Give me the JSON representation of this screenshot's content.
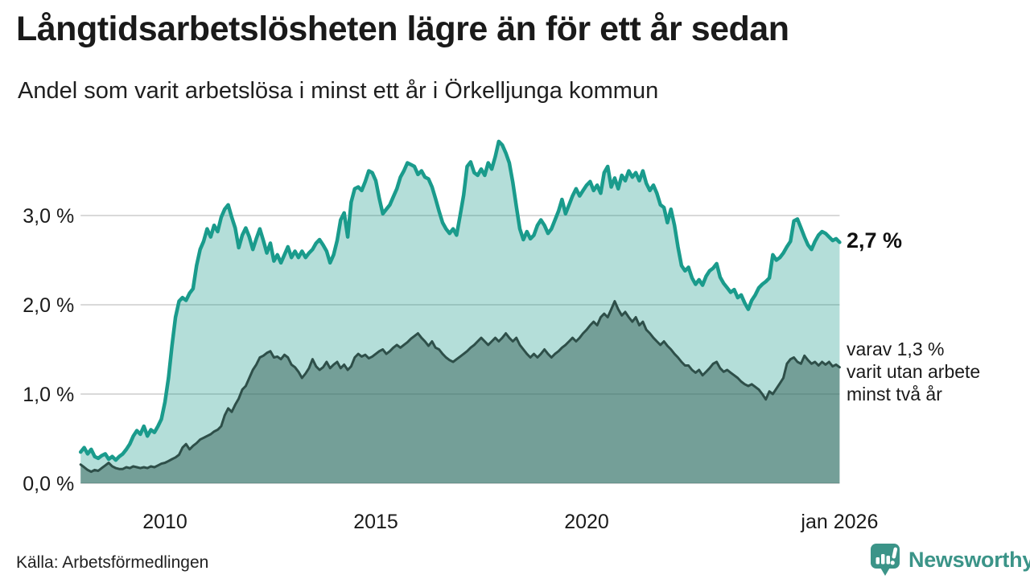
{
  "header": {
    "title": "Långtidsarbetslösheten lägre än för ett år sedan",
    "subtitle": "Andel som varit arbetslösa i minst ett år i Örkelljunga kommun"
  },
  "annotations": {
    "latest_total": "2,7 %",
    "latest_two_year": "varav 1,3 %\nvarit utan arbete\nminst två år"
  },
  "footer": {
    "source": "Källa: Arbetsförmedlingen",
    "logo_text": "Newsworthy",
    "logo_color": "#3b9488"
  },
  "chart_data": {
    "type": "area",
    "title": "Långtidsarbetslösheten lägre än för ett år sedan",
    "subtitle": "Andel som varit arbetslösa i minst ett år i Örkelljunga kommun",
    "unit": "%",
    "grid": true,
    "gridline_color": "#d9d9d9",
    "x_start_year": 2008.0,
    "x_end_year": 2026.0,
    "points_per_year": 12,
    "x_tick_years": [
      2010,
      2015,
      2020,
      2026
    ],
    "x_tick_labels": [
      "2010",
      "2015",
      "2020",
      "jan 2026"
    ],
    "y_tick_values": [
      0,
      1,
      2,
      3
    ],
    "y_tick_labels": [
      "0,0 %",
      "1,0 %",
      "2,0 %",
      "3,0 %"
    ],
    "ylim": [
      0,
      3.9
    ],
    "series": [
      {
        "name": "Andel som varit arbetslösa i minst ett år",
        "line_color": "#1a9b8c",
        "fill_color": "#1a9b8c",
        "fill_opacity": 0.33,
        "line_width": 4.5,
        "latest_value": 2.7,
        "values": [
          0.35,
          0.4,
          0.33,
          0.38,
          0.3,
          0.28,
          0.31,
          0.33,
          0.27,
          0.3,
          0.26,
          0.3,
          0.33,
          0.38,
          0.44,
          0.53,
          0.59,
          0.55,
          0.64,
          0.53,
          0.6,
          0.57,
          0.64,
          0.72,
          0.91,
          1.18,
          1.54,
          1.86,
          2.04,
          2.08,
          2.05,
          2.13,
          2.18,
          2.44,
          2.62,
          2.71,
          2.85,
          2.76,
          2.89,
          2.82,
          2.98,
          3.07,
          3.12,
          2.98,
          2.86,
          2.64,
          2.78,
          2.86,
          2.76,
          2.62,
          2.74,
          2.85,
          2.72,
          2.58,
          2.69,
          2.49,
          2.56,
          2.47,
          2.56,
          2.65,
          2.53,
          2.6,
          2.53,
          2.6,
          2.53,
          2.58,
          2.62,
          2.69,
          2.73,
          2.67,
          2.6,
          2.47,
          2.56,
          2.72,
          2.95,
          3.03,
          2.76,
          3.15,
          3.3,
          3.32,
          3.28,
          3.38,
          3.5,
          3.48,
          3.39,
          3.19,
          3.02,
          3.07,
          3.12,
          3.21,
          3.3,
          3.43,
          3.5,
          3.59,
          3.57,
          3.55,
          3.46,
          3.5,
          3.43,
          3.41,
          3.32,
          3.19,
          3.05,
          2.92,
          2.85,
          2.8,
          2.85,
          2.78,
          3.0,
          3.23,
          3.55,
          3.6,
          3.48,
          3.45,
          3.52,
          3.45,
          3.59,
          3.52,
          3.66,
          3.83,
          3.79,
          3.7,
          3.59,
          3.37,
          3.1,
          2.85,
          2.73,
          2.82,
          2.74,
          2.78,
          2.89,
          2.95,
          2.89,
          2.8,
          2.85,
          2.95,
          3.05,
          3.18,
          3.02,
          3.12,
          3.22,
          3.3,
          3.22,
          3.28,
          3.34,
          3.38,
          3.28,
          3.34,
          3.25,
          3.48,
          3.55,
          3.32,
          3.42,
          3.3,
          3.45,
          3.39,
          3.5,
          3.43,
          3.48,
          3.39,
          3.5,
          3.36,
          3.28,
          3.34,
          3.25,
          3.12,
          3.09,
          2.92,
          3.07,
          2.89,
          2.65,
          2.44,
          2.38,
          2.42,
          2.3,
          2.23,
          2.28,
          2.22,
          2.32,
          2.38,
          2.41,
          2.46,
          2.31,
          2.24,
          2.19,
          2.14,
          2.17,
          2.08,
          2.11,
          2.02,
          1.95,
          2.05,
          2.11,
          2.19,
          2.23,
          2.26,
          2.3,
          2.56,
          2.5,
          2.53,
          2.58,
          2.65,
          2.71,
          2.94,
          2.96,
          2.86,
          2.76,
          2.67,
          2.62,
          2.71,
          2.78,
          2.82,
          2.8,
          2.76,
          2.72,
          2.74,
          2.7
        ]
      },
      {
        "name": "varav utan arbete minst två år",
        "line_color": "#2e4f49",
        "fill_color": "#3f6b62",
        "fill_opacity": 0.55,
        "line_width": 3,
        "latest_value": 1.3,
        "values": [
          0.21,
          0.18,
          0.15,
          0.13,
          0.15,
          0.14,
          0.17,
          0.2,
          0.23,
          0.19,
          0.17,
          0.16,
          0.16,
          0.18,
          0.17,
          0.19,
          0.18,
          0.17,
          0.18,
          0.17,
          0.19,
          0.18,
          0.2,
          0.22,
          0.23,
          0.25,
          0.27,
          0.29,
          0.32,
          0.4,
          0.44,
          0.38,
          0.42,
          0.45,
          0.49,
          0.51,
          0.53,
          0.55,
          0.58,
          0.6,
          0.64,
          0.76,
          0.84,
          0.8,
          0.88,
          0.95,
          1.05,
          1.09,
          1.18,
          1.27,
          1.33,
          1.41,
          1.43,
          1.46,
          1.48,
          1.41,
          1.42,
          1.39,
          1.44,
          1.41,
          1.33,
          1.3,
          1.25,
          1.18,
          1.23,
          1.29,
          1.39,
          1.31,
          1.27,
          1.3,
          1.36,
          1.29,
          1.33,
          1.36,
          1.29,
          1.33,
          1.27,
          1.31,
          1.41,
          1.45,
          1.42,
          1.44,
          1.4,
          1.42,
          1.45,
          1.48,
          1.5,
          1.45,
          1.48,
          1.52,
          1.55,
          1.52,
          1.55,
          1.58,
          1.62,
          1.65,
          1.68,
          1.63,
          1.59,
          1.54,
          1.59,
          1.52,
          1.5,
          1.45,
          1.41,
          1.38,
          1.36,
          1.39,
          1.42,
          1.45,
          1.48,
          1.52,
          1.55,
          1.59,
          1.63,
          1.59,
          1.55,
          1.59,
          1.63,
          1.59,
          1.63,
          1.68,
          1.63,
          1.59,
          1.63,
          1.55,
          1.5,
          1.45,
          1.41,
          1.45,
          1.41,
          1.45,
          1.5,
          1.45,
          1.41,
          1.45,
          1.48,
          1.52,
          1.55,
          1.59,
          1.63,
          1.59,
          1.63,
          1.68,
          1.72,
          1.77,
          1.81,
          1.77,
          1.86,
          1.9,
          1.86,
          1.95,
          2.04,
          1.95,
          1.88,
          1.92,
          1.86,
          1.81,
          1.86,
          1.77,
          1.81,
          1.72,
          1.68,
          1.63,
          1.59,
          1.55,
          1.59,
          1.54,
          1.5,
          1.45,
          1.41,
          1.36,
          1.32,
          1.32,
          1.27,
          1.24,
          1.27,
          1.21,
          1.25,
          1.29,
          1.34,
          1.36,
          1.29,
          1.25,
          1.27,
          1.24,
          1.21,
          1.18,
          1.14,
          1.11,
          1.09,
          1.11,
          1.08,
          1.05,
          1.0,
          0.94,
          1.03,
          1.0,
          1.06,
          1.12,
          1.18,
          1.34,
          1.39,
          1.41,
          1.36,
          1.34,
          1.43,
          1.38,
          1.34,
          1.36,
          1.32,
          1.36,
          1.33,
          1.36,
          1.31,
          1.33,
          1.3
        ]
      }
    ]
  }
}
